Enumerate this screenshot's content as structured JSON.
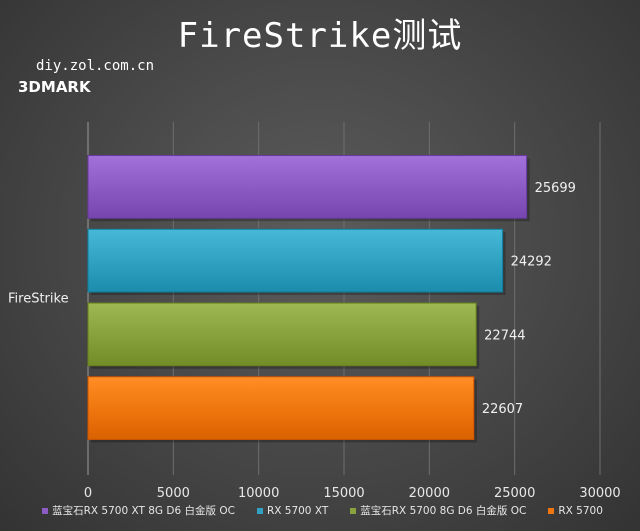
{
  "header": {
    "title": "FireStrike测试",
    "site": "diy.zol.com.cn",
    "brand": "3DMARK"
  },
  "chart_data": {
    "type": "bar",
    "orientation": "horizontal",
    "categories": [
      "FireStrike"
    ],
    "xlim": [
      0,
      30000
    ],
    "x_ticks": [
      0,
      5000,
      10000,
      15000,
      20000,
      25000,
      30000
    ],
    "grid": true,
    "legend_position": "bottom",
    "series": [
      {
        "name": "蓝宝石RX 5700 XT 8G D6 白金版 OC",
        "values": [
          25699
        ],
        "color": "#8c5cc4"
      },
      {
        "name": "RX 5700 XT",
        "values": [
          24292
        ],
        "color": "#32a2c3"
      },
      {
        "name": "蓝宝石RX 5700  8G D6 白金版 OC",
        "values": [
          22744
        ],
        "color": "#88a33e"
      },
      {
        "name": "RX 5700",
        "values": [
          22607
        ],
        "color": "#f0770f"
      }
    ]
  }
}
